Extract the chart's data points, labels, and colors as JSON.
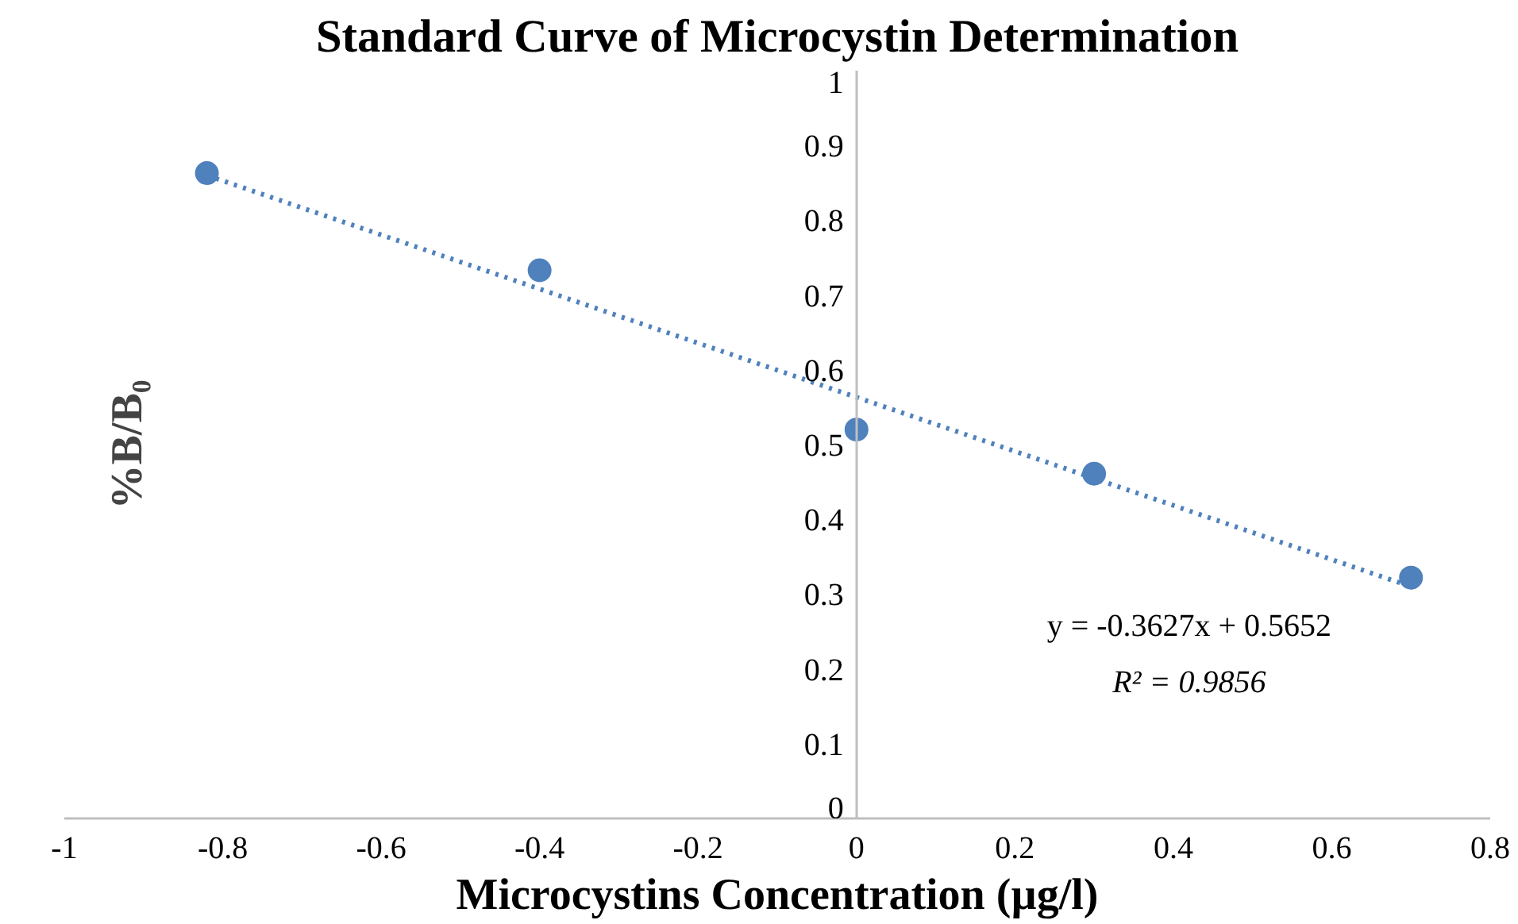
{
  "chart_data": {
    "type": "scatter",
    "title": "Standard Curve of Microcystin Determination",
    "xlabel": "Microcystins Concentration (µg/l)",
    "ylabel": "%B/B₀",
    "x": [
      -0.82,
      -0.4,
      0,
      0.3,
      0.7
    ],
    "series": [
      {
        "color": "#4f81bd",
        "marker": "circle",
        "values": [
          0.863,
          0.733,
          0.52,
          0.461,
          0.322
        ]
      },
      {
        "type": "line",
        "color": "#4f81bd",
        "line_style": "dotted",
        "x": [
          -0.82,
          0.7
        ],
        "values": [
          0.86,
          0.31
        ]
      }
    ],
    "xlim": [
      -1,
      0.8
    ],
    "xticks": [
      -1,
      -0.8,
      -0.6,
      -0.4,
      -0.2,
      0,
      0.2,
      0.4,
      0.6,
      0.8
    ],
    "ylim": [
      0,
      1
    ],
    "yticks": [
      0,
      0.1,
      0.2,
      0.3,
      0.4,
      0.5,
      0.6,
      0.7,
      0.8,
      0.9,
      1
    ],
    "annotations": [
      "y = -0.3627x + 0.5652",
      "R² = 0.9856"
    ]
  }
}
